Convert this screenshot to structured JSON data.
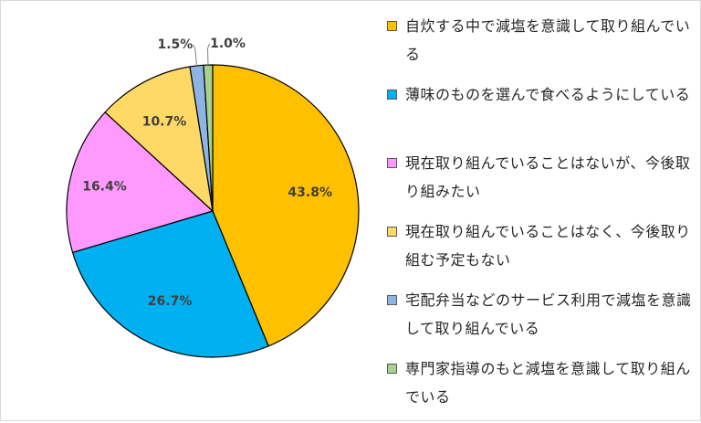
{
  "chart_data": {
    "type": "pie",
    "title": "",
    "slices": [
      {
        "label": "自炊する中で減塩を意識して取り組んでいる",
        "value": 43.8,
        "display": "43.8%",
        "color": "#FFC000"
      },
      {
        "label": "薄味のものを選んで食べるようにしている",
        "value": 26.7,
        "display": "26.7%",
        "color": "#00B0F0"
      },
      {
        "label": "現在取り組んでいることはないが、今後取り組みたい",
        "value": 16.4,
        "display": "16.4%",
        "color": "#FF99FF"
      },
      {
        "label": "現在取り組んでいることはなく、今後取り組む予定もない",
        "value": 10.7,
        "display": "10.7%",
        "color": "#FFD966"
      },
      {
        "label": "宅配弁当などのサービス利用で減塩を意識して取り組んでいる",
        "value": 1.5,
        "display": "1.5%",
        "color": "#8EB4E3"
      },
      {
        "label": "専門家指導のもと減塩を意識して取り組んでいる",
        "value": 1.0,
        "display": "1.0%",
        "color": "#A9D18E"
      }
    ],
    "legend_position": "right"
  }
}
